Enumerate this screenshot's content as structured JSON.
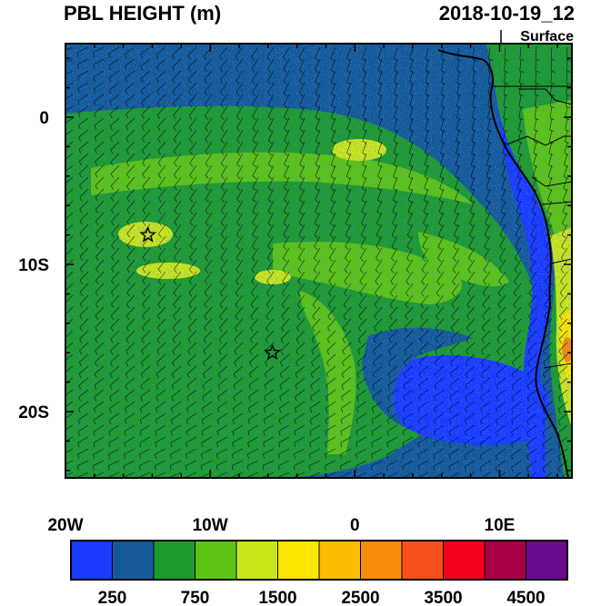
{
  "title": "PBL HEIGHT (m)",
  "datetime": "2018-10-19_12",
  "level": "Surface",
  "lon_ticks": [
    {
      "label": "20W",
      "lon": -20
    },
    {
      "label": "10W",
      "lon": -10
    },
    {
      "label": "0",
      "lon": 0
    },
    {
      "label": "10E",
      "lon": 10
    }
  ],
  "lat_ticks": [
    {
      "label": "0",
      "lat": 0
    },
    {
      "label": "10S",
      "lat": -10
    },
    {
      "label": "20S",
      "lat": -20
    }
  ],
  "extent": {
    "lon_min": -20,
    "lon_max": 15,
    "lat_min": -24.5,
    "lat_max": 5
  },
  "markers": [
    {
      "name": "star-marker-1",
      "lon": -14.3,
      "lat": -8.0
    },
    {
      "name": "star-marker-2",
      "lon": -5.7,
      "lat": -16.0
    }
  ],
  "colorbar": {
    "colors": [
      "#1a3bff",
      "#155a96",
      "#1e9a2c",
      "#5cc312",
      "#c9e61a",
      "#fae600",
      "#fbbd00",
      "#f98c0a",
      "#f75019",
      "#f5001d",
      "#a80045",
      "#6a0a8c"
    ],
    "labels": [
      {
        "text": "250",
        "boundary": 1
      },
      {
        "text": "750",
        "boundary": 3
      },
      {
        "text": "1500",
        "boundary": 5
      },
      {
        "text": "2500",
        "boundary": 7
      },
      {
        "text": "3500",
        "boundary": 9
      },
      {
        "text": "4500",
        "boundary": 11
      }
    ]
  },
  "colors": {
    "ocean_deep": "#155a96",
    "ocean_low": "#1a3bff",
    "mid": "#1e9a2c",
    "high": "#5cc312",
    "peak": "#c9e61a",
    "land_hot": "#f98c0a"
  }
}
